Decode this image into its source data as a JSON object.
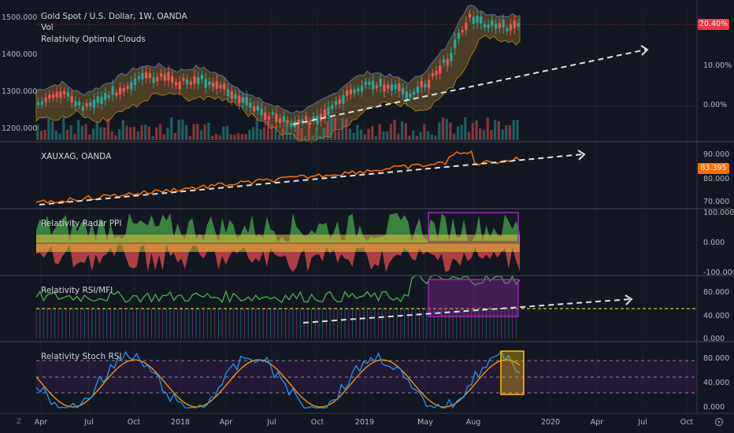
{
  "main_pane": {
    "title": "Gold Spot / U.S. Dollar, 1W, OANDA",
    "vol_label": "Vol",
    "indicator_label": "Relativity Optimal Clouds",
    "left_ticks": [
      "1500.000",
      "1400.000",
      "1300.000",
      "1200.000"
    ],
    "right_ticks": [
      "10.00%",
      "0.00%"
    ],
    "badge": "20.40%",
    "badge_color": "#f23645"
  },
  "xauxag_pane": {
    "title": "XAUXAG, OANDA",
    "right_ticks": [
      "90.000",
      "80.000",
      "70.000"
    ],
    "badge": "83.395",
    "badge_color": "#ff6d00"
  },
  "radar_pane": {
    "title": "Relativity Radar PPI",
    "right_ticks": [
      "100.000",
      "0.000",
      "-100.000"
    ]
  },
  "rsi_pane": {
    "title": "Relativity RSI/MFI",
    "right_ticks": [
      "80.000",
      "40.000",
      "0.000"
    ]
  },
  "stoch_pane": {
    "title": "Relativity Stoch RSI",
    "right_ticks": [
      "80.000",
      "40.000",
      "0.000"
    ]
  },
  "time_axis": [
    "Apr",
    "Jul",
    "Oct",
    "2018",
    "Apr",
    "Jul",
    "Oct",
    "2019",
    "May",
    "Aug",
    "2020",
    "Apr",
    "Jul",
    "Oct"
  ],
  "corner_icon": "Z",
  "colors": {
    "background": "#131722",
    "up_candle": "#26a69a",
    "down_candle": "#ef5350",
    "xauxag_line": "#ff6d00",
    "rsi_line": "#4caf50",
    "stoch_k": "#2196f3",
    "stoch_d": "#ff9800",
    "highlight_box": "#9c27b0",
    "stoch_highlight": "#ffc107"
  }
}
